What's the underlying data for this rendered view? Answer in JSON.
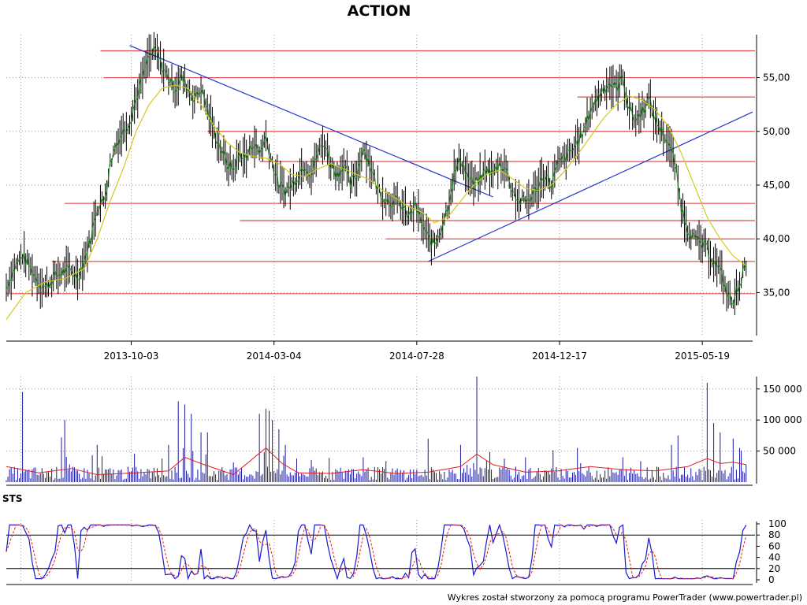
{
  "chart_data": {
    "title": "ACTION",
    "credit": "Wykres został stworzony za pomocą programu PowerTrader (www.powertrader.pl)",
    "colors": {
      "price": "#000000",
      "price_upper_ma": "#008000",
      "ma_long": "#d4c81e",
      "support_resistance": "#e05050",
      "trendline": "#2233cc",
      "volume": "#1a1aa0",
      "volume_ma": "#e02020",
      "stoch_k": "#1a1acc",
      "stoch_d": "#e02020",
      "grid": "#999999"
    },
    "x_axis": {
      "type": "date",
      "tick_labels": [
        "2013-10-03",
        "2014-03-04",
        "2014-07-28",
        "2014-12-17",
        "2015-05-19"
      ]
    },
    "price_panel": {
      "type": "line",
      "y_ticks": [
        "35,00",
        "40,00",
        "45,00",
        "50,00",
        "55,00"
      ],
      "ylim": [
        31,
        59
      ],
      "price_path": [
        [
          0,
          35.5
        ],
        [
          2,
          37
        ],
        [
          5,
          38.5
        ],
        [
          8,
          37
        ],
        [
          10,
          36
        ],
        [
          12,
          35.5
        ],
        [
          15,
          36.5
        ],
        [
          18,
          37
        ],
        [
          20,
          37
        ],
        [
          22,
          36.5
        ],
        [
          24,
          38
        ],
        [
          26,
          40
        ],
        [
          28,
          43
        ],
        [
          30,
          43.5
        ],
        [
          31,
          45
        ],
        [
          32,
          47
        ],
        [
          34,
          49
        ],
        [
          36,
          50
        ],
        [
          38,
          51
        ],
        [
          40,
          53
        ],
        [
          42,
          55
        ],
        [
          44,
          57
        ],
        [
          46,
          57.5
        ],
        [
          48,
          56
        ],
        [
          50,
          55
        ],
        [
          52,
          54
        ],
        [
          54,
          55
        ],
        [
          56,
          54
        ],
        [
          58,
          53
        ],
        [
          60,
          54
        ],
        [
          62,
          52
        ],
        [
          64,
          50
        ],
        [
          66,
          48.5
        ],
        [
          68,
          47
        ],
        [
          70,
          46.5
        ],
        [
          72,
          48
        ],
        [
          74,
          47.5
        ],
        [
          76,
          49
        ],
        [
          78,
          48
        ],
        [
          80,
          49.5
        ],
        [
          82,
          47
        ],
        [
          84,
          45
        ],
        [
          86,
          44.5
        ],
        [
          88,
          45
        ],
        [
          90,
          46
        ],
        [
          92,
          47
        ],
        [
          94,
          46
        ],
        [
          96,
          48
        ],
        [
          98,
          49
        ],
        [
          100,
          47
        ],
        [
          102,
          46
        ],
        [
          104,
          47
        ],
        [
          106,
          45
        ],
        [
          108,
          46
        ],
        [
          110,
          48.5
        ],
        [
          112,
          47
        ],
        [
          114,
          45
        ],
        [
          116,
          44
        ],
        [
          118,
          43.5
        ],
        [
          120,
          43.5
        ],
        [
          122,
          43
        ],
        [
          124,
          42
        ],
        [
          126,
          43
        ],
        [
          128,
          41.5
        ],
        [
          130,
          40
        ],
        [
          132,
          39.5
        ],
        [
          134,
          41
        ],
        [
          136,
          43
        ],
        [
          138,
          46
        ],
        [
          140,
          47.5
        ],
        [
          142,
          46
        ],
        [
          144,
          45
        ],
        [
          146,
          45.5
        ],
        [
          148,
          46.5
        ],
        [
          150,
          46
        ],
        [
          152,
          47
        ],
        [
          154,
          46.5
        ],
        [
          156,
          44.5
        ],
        [
          158,
          43.5
        ],
        [
          160,
          43.5
        ],
        [
          162,
          44
        ],
        [
          164,
          45
        ],
        [
          166,
          46
        ],
        [
          168,
          45
        ],
        [
          170,
          47
        ],
        [
          172,
          47.5
        ],
        [
          174,
          48
        ],
        [
          176,
          49
        ],
        [
          178,
          50
        ],
        [
          180,
          52
        ],
        [
          182,
          53
        ],
        [
          184,
          54
        ],
        [
          186,
          54.5
        ],
        [
          188,
          54
        ],
        [
          190,
          55
        ],
        [
          192,
          52
        ],
        [
          194,
          51
        ],
        [
          196,
          52
        ],
        [
          198,
          53
        ],
        [
          200,
          51
        ],
        [
          202,
          50
        ],
        [
          204,
          49
        ],
        [
          206,
          47
        ],
        [
          208,
          43
        ],
        [
          210,
          41
        ],
        [
          212,
          40
        ],
        [
          214,
          39.5
        ],
        [
          216,
          39
        ],
        [
          218,
          38
        ],
        [
          220,
          37
        ],
        [
          222,
          35
        ],
        [
          224,
          34
        ],
        [
          226,
          36
        ],
        [
          228,
          37.5
        ]
      ],
      "ma_path": [
        [
          0,
          32.5
        ],
        [
          6,
          35
        ],
        [
          12,
          36
        ],
        [
          18,
          36.3
        ],
        [
          24,
          37.2
        ],
        [
          28,
          40
        ],
        [
          32,
          43.5
        ],
        [
          36,
          46.5
        ],
        [
          40,
          50
        ],
        [
          44,
          52.5
        ],
        [
          48,
          54
        ],
        [
          52,
          54.3
        ],
        [
          56,
          54
        ],
        [
          60,
          52.5
        ],
        [
          64,
          50.5
        ],
        [
          68,
          49
        ],
        [
          72,
          48
        ],
        [
          76,
          47.7
        ],
        [
          80,
          47.5
        ],
        [
          84,
          47
        ],
        [
          88,
          46
        ],
        [
          92,
          45.8
        ],
        [
          96,
          46.5
        ],
        [
          100,
          47
        ],
        [
          104,
          46.5
        ],
        [
          108,
          46
        ],
        [
          112,
          45.5
        ],
        [
          116,
          44.5
        ],
        [
          120,
          43.8
        ],
        [
          124,
          43
        ],
        [
          128,
          42.5
        ],
        [
          132,
          41.5
        ],
        [
          136,
          42
        ],
        [
          140,
          43.5
        ],
        [
          144,
          45
        ],
        [
          148,
          46
        ],
        [
          152,
          46.4
        ],
        [
          156,
          45.6
        ],
        [
          160,
          44.7
        ],
        [
          164,
          44.5
        ],
        [
          168,
          45
        ],
        [
          172,
          46.3
        ],
        [
          176,
          47.8
        ],
        [
          180,
          49.5
        ],
        [
          184,
          51.2
        ],
        [
          188,
          52.5
        ],
        [
          192,
          53.3
        ],
        [
          196,
          52.9
        ],
        [
          200,
          52
        ],
        [
          204,
          50.5
        ],
        [
          208,
          48
        ],
        [
          212,
          45
        ],
        [
          216,
          42
        ],
        [
          220,
          40
        ],
        [
          224,
          38.4
        ],
        [
          228,
          37.5
        ]
      ],
      "horizontal_levels": [
        {
          "value": 57.5,
          "from": 29
        },
        {
          "value": 55,
          "from": 30
        },
        {
          "value": 53.2,
          "from": 176
        },
        {
          "value": 50,
          "from": 62
        },
        {
          "value": 47.2,
          "from": 78
        },
        {
          "value": 43.3,
          "from": 18
        },
        {
          "value": 41.7,
          "from": 72
        },
        {
          "value": 40,
          "from": 117
        },
        {
          "value": 37.9,
          "from": 14
        },
        {
          "value": 34.9,
          "from": 0
        }
      ],
      "trendlines": [
        {
          "from": [
            38,
            58
          ],
          "to": [
            150,
            43.9
          ]
        },
        {
          "from": [
            130,
            37.9
          ],
          "to": [
            230,
            51.8
          ]
        }
      ]
    },
    "volume_panel": {
      "type": "bar",
      "y_ticks": [
        "50 000",
        "100 000",
        "150 000"
      ],
      "ylim": [
        0,
        170000
      ],
      "spikes": [
        [
          5,
          145000
        ],
        [
          17,
          72000
        ],
        [
          18,
          100000
        ],
        [
          28,
          60000
        ],
        [
          50,
          60000
        ],
        [
          53,
          130000
        ],
        [
          55,
          125000
        ],
        [
          57,
          110000
        ],
        [
          60,
          80000
        ],
        [
          62,
          80000
        ],
        [
          78,
          110000
        ],
        [
          80,
          118000
        ],
        [
          81,
          115000
        ],
        [
          82,
          100000
        ],
        [
          84,
          85000
        ],
        [
          86,
          60000
        ],
        [
          110,
          40000
        ],
        [
          130,
          70000
        ],
        [
          140,
          60000
        ],
        [
          145,
          170000
        ],
        [
          148,
          35000
        ],
        [
          160,
          40000
        ],
        [
          176,
          55000
        ],
        [
          190,
          40000
        ],
        [
          205,
          60000
        ],
        [
          207,
          75000
        ],
        [
          216,
          160000
        ],
        [
          218,
          95000
        ],
        [
          220,
          80000
        ],
        [
          224,
          70000
        ],
        [
          226,
          55000
        ]
      ],
      "ma_path": [
        [
          0,
          25000
        ],
        [
          10,
          15000
        ],
        [
          20,
          22000
        ],
        [
          28,
          12000
        ],
        [
          40,
          15000
        ],
        [
          50,
          18000
        ],
        [
          55,
          40000
        ],
        [
          60,
          30000
        ],
        [
          70,
          12000
        ],
        [
          80,
          55000
        ],
        [
          85,
          30000
        ],
        [
          90,
          15000
        ],
        [
          100,
          14000
        ],
        [
          110,
          20000
        ],
        [
          120,
          14000
        ],
        [
          130,
          16000
        ],
        [
          140,
          25000
        ],
        [
          145,
          45000
        ],
        [
          150,
          28000
        ],
        [
          160,
          16000
        ],
        [
          170,
          18000
        ],
        [
          180,
          25000
        ],
        [
          190,
          20000
        ],
        [
          200,
          18000
        ],
        [
          210,
          25000
        ],
        [
          216,
          38000
        ],
        [
          220,
          30000
        ],
        [
          224,
          32000
        ],
        [
          228,
          28000
        ]
      ]
    },
    "stochastic_panel": {
      "label": "STS",
      "type": "line",
      "y_ticks": [
        "0",
        "20",
        "40",
        "60",
        "80",
        "100"
      ],
      "ylim": [
        0,
        100
      ],
      "reference_lines": [
        20,
        80
      ]
    }
  }
}
